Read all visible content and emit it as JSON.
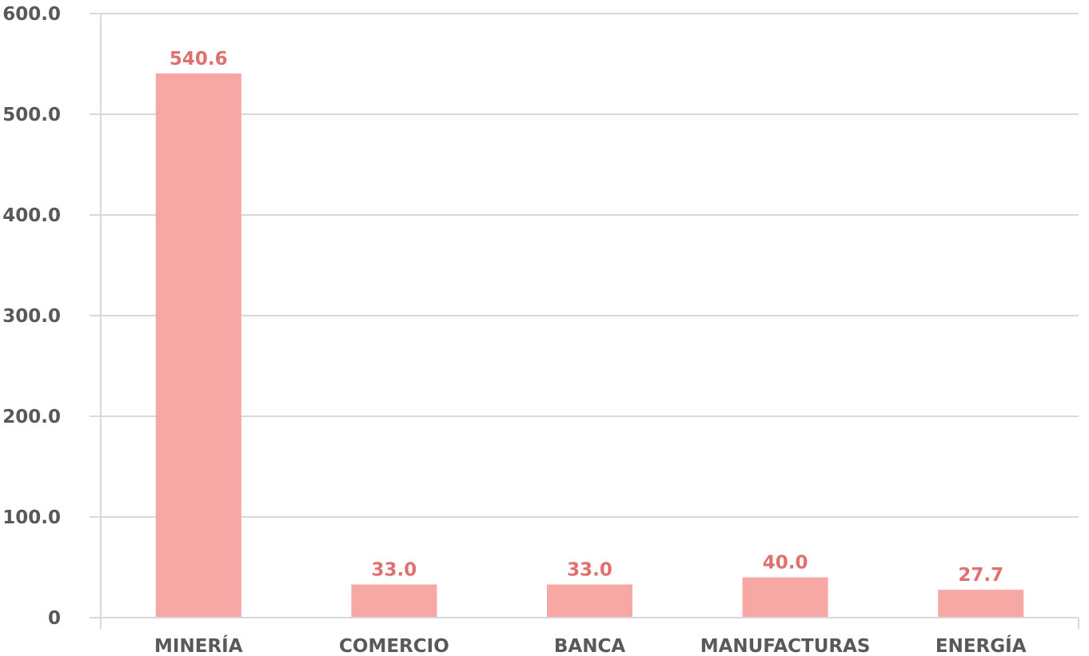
{
  "chart_data": {
    "type": "bar",
    "categories": [
      "MINERÍA",
      "COMERCIO",
      "BANCA",
      "MANUFACTURAS",
      "ENERGÍA"
    ],
    "values": [
      540.6,
      33.0,
      33.0,
      40.0,
      27.7
    ],
    "value_labels": [
      "540.6",
      "33.0",
      "33.0",
      "40.0",
      "27.7"
    ],
    "ylim": [
      0,
      600
    ],
    "y_ticks": [
      0,
      100,
      200,
      300,
      400,
      500,
      600
    ],
    "y_tick_labels": [
      "0",
      "100.0",
      "200.0",
      "300.0",
      "400.0",
      "500.0",
      "600.0"
    ],
    "grid": true,
    "legend": "none",
    "bar_color": "#f7a8a4",
    "label_color": "#e07070",
    "axis_text_color": "#595959",
    "grid_color": "#d9d9d9"
  }
}
